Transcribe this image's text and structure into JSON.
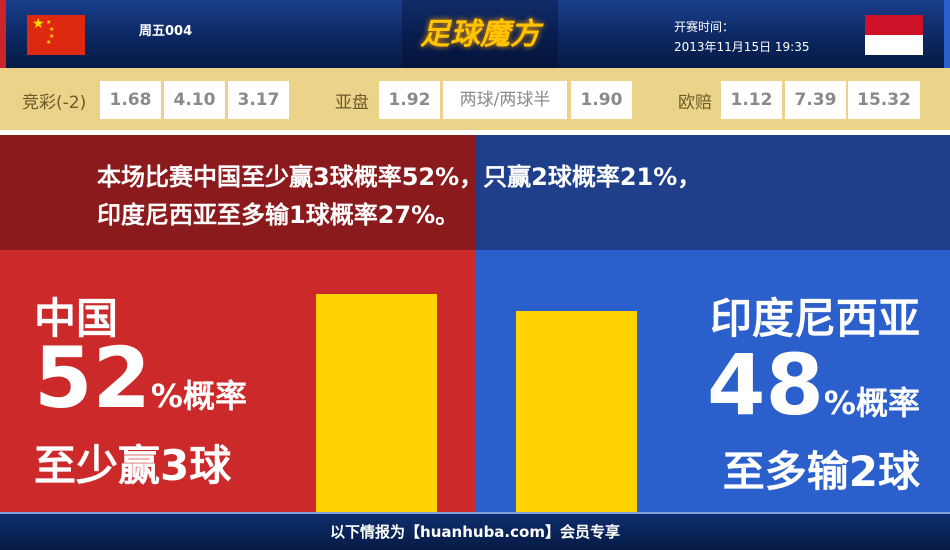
{
  "header": {
    "home_team_flag": "china-flag",
    "away_team_flag": "indonesia-flag",
    "match_no": "周五004",
    "logo": "足球魔方",
    "kickoff_label": "开赛时间：",
    "kickoff_time": "2013年11月15日 19:35"
  },
  "odds": {
    "jingcai": {
      "label": "竞彩(-2)",
      "values": [
        "1.68",
        "4.10",
        "3.17"
      ]
    },
    "yapan": {
      "label": "亚盘",
      "values": [
        "1.92",
        "两球/两球半",
        "1.90"
      ]
    },
    "oupei": {
      "label": "欧赔",
      "values": [
        "1.12",
        "7.39",
        "15.32"
      ]
    }
  },
  "banner": {
    "line1": "本场比赛中国至少赢3球概率52%，只赢2球概率21%，",
    "line2": "印度尼西亚至多输1球概率27%。"
  },
  "left": {
    "team": "中国",
    "percent": "52",
    "percent_suffix": "%概率",
    "outcome": "至少赢3球",
    "bar_value": 52,
    "color": "#cc2a2a"
  },
  "right": {
    "team": "印度尼西亚",
    "percent": "48",
    "percent_suffix": "%概率",
    "outcome": "至多输2球",
    "bar_value": 48,
    "color": "#2a5fcc"
  },
  "bar_color": "#ffd200",
  "footer": {
    "text": "以下情报为【huanhuba.com】会员专享"
  }
}
